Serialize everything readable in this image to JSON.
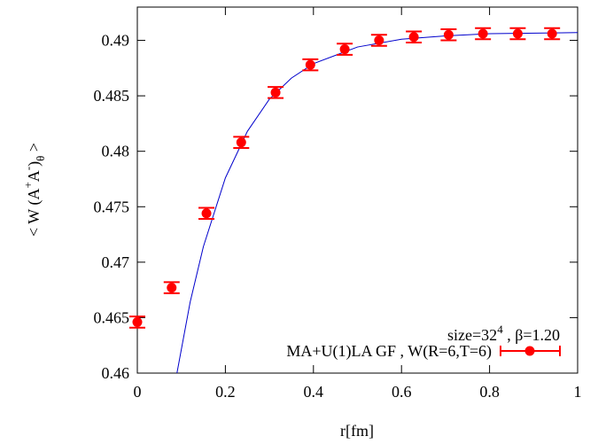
{
  "chart_data": {
    "type": "scatter",
    "xlabel": "r[fm]",
    "ylabel": [
      "< W (A",
      "+",
      "A",
      "-",
      ")",
      "θ",
      " >"
    ],
    "annotation": [
      "size=32",
      "4",
      " , β=1.20"
    ],
    "xlim": [
      0,
      1
    ],
    "ylim": [
      0.46,
      0.493
    ],
    "xticks": [
      0,
      0.2,
      0.4,
      0.6,
      0.8,
      1
    ],
    "yticks": [
      0.46,
      0.465,
      0.47,
      0.475,
      0.48,
      0.485,
      0.49
    ],
    "series": [
      {
        "name": "MA+U(1)LA GF , W(R=6,T=6)",
        "color": "#ff0000",
        "x": [
          0,
          0.078,
          0.157,
          0.236,
          0.314,
          0.393,
          0.471,
          0.549,
          0.628,
          0.707,
          0.785,
          0.864,
          0.942
        ],
        "values": [
          0.4646,
          0.4677,
          0.4744,
          0.4808,
          0.4853,
          0.4878,
          0.4892,
          0.49,
          0.4903,
          0.4905,
          0.4906,
          0.4906,
          0.4906
        ],
        "errors": [
          0.0005,
          0.0005,
          0.0005,
          0.0005,
          0.0005,
          0.0005,
          0.0005,
          0.0005,
          0.0005,
          0.0005,
          0.0005,
          0.0005,
          0.0005
        ]
      }
    ],
    "fit": {
      "color": "#0000cc",
      "x": [
        0.09,
        0.12,
        0.15,
        0.2,
        0.25,
        0.3,
        0.35,
        0.4,
        0.5,
        0.6,
        0.7,
        0.8,
        1.0
      ],
      "values": [
        0.46,
        0.4664,
        0.4714,
        0.4776,
        0.4818,
        0.4847,
        0.4866,
        0.4879,
        0.4894,
        0.4901,
        0.4904,
        0.4906,
        0.4907
      ]
    }
  }
}
